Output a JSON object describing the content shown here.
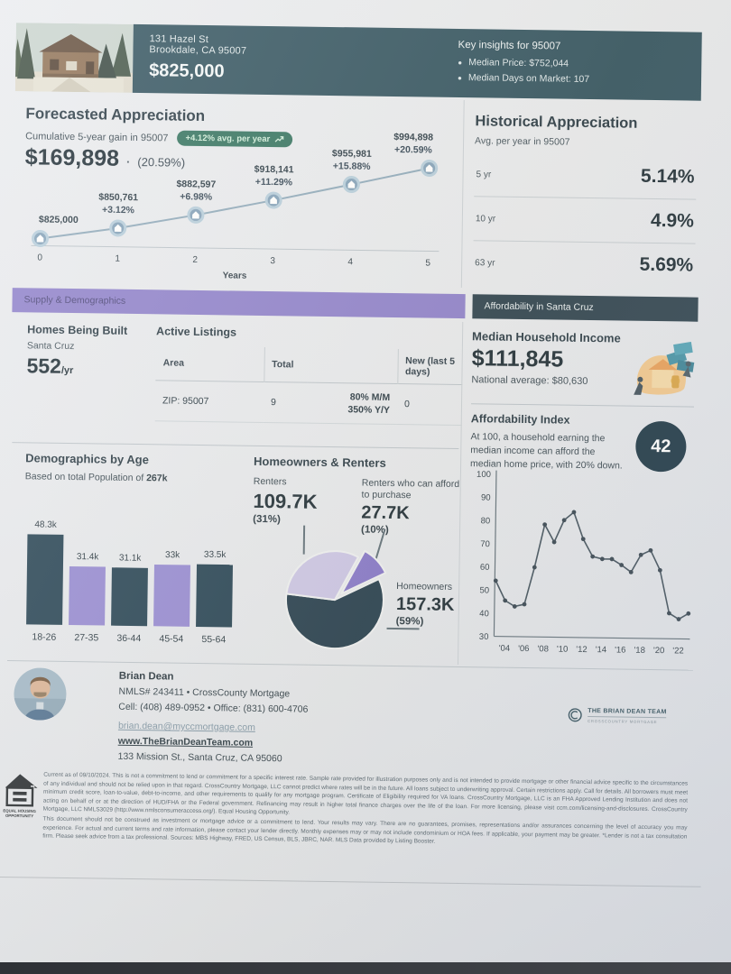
{
  "header": {
    "address_line1": "131 Hazel St",
    "address_line2": "Brookdale, CA 95007",
    "price": "$825,000",
    "insights_title": "Key insights for 95007",
    "insights": [
      "Median Price: $752,044",
      "Median Days on Market: 107"
    ]
  },
  "forecast": {
    "title": "Forecasted Appreciation",
    "subtitle": "Cumulative 5-year gain in 95007",
    "badge_label": "+4.12% avg. per year",
    "gain_amount": "$169,898",
    "gain_sep": "·",
    "gain_pct": "(20.59%)"
  },
  "historical": {
    "title": "Historical Appreciation",
    "subtitle": "Avg. per year in 95007",
    "rows": [
      {
        "label": "5 yr",
        "value": "5.14%"
      },
      {
        "label": "10 yr",
        "value": "4.9%"
      },
      {
        "label": "63 yr",
        "value": "5.69%"
      }
    ]
  },
  "section_bars": {
    "left": "Supply & Demographics",
    "right": "Affordability in Santa Cruz"
  },
  "supply": {
    "homes_title": "Homes Being Built",
    "homes_area": "Santa Cruz",
    "homes_value": "552",
    "homes_unit": "/yr",
    "listings_title": "Active Listings",
    "table": {
      "headers": [
        "Area",
        "Total",
        "New (last 5 days)"
      ],
      "row": {
        "area": "ZIP: 95007",
        "total": "9",
        "mm": "80% M/M",
        "yy": "350% Y/Y",
        "new": "0"
      }
    }
  },
  "income": {
    "title": "Median Household Income",
    "value": "$111,845",
    "national": "National average: $80,630"
  },
  "afford_index": {
    "title": "Affordability Index",
    "description": "At 100, a household earning the median income can afford the median home price, with 20% down.",
    "score": "42"
  },
  "contact": {
    "name": "Brian Dean",
    "line1": "NMLS# 243411 • CrossCounty Mortgage",
    "line2": "Cell: (408) 489-0952 • Office: (831) 600-4706",
    "email": "brian.dean@myccmortgage.com",
    "website": "www.TheBrianDeanTeam.com",
    "address": "133 Mission St., Santa Cruz, CA 95060",
    "brand_name": "THE BRIAN DEAN TEAM",
    "brand_sub": "CROSSCOUNTRY MORTGAGE"
  },
  "disclaimer": {
    "equal_housing_line1": "EQUAL HOUSING",
    "equal_housing_line2": "OPPORTUNITY",
    "p1": "Current as of 09/10/2024. This is not a commitment to lend or commitment for a specific interest rate. Sample rate provided for illustration purposes only and is not intended to provide mortgage or other financial advice specific to the circumstances of any individual and should not be relied upon in that regard. CrossCountry Mortgage, LLC cannot predict where rates will be in the future. All loans subject to underwriting approval. Certain restrictions apply. Call for details. All borrowers must meet minimum credit score, loan-to-value, debt-to-income, and other requirements to qualify for any mortgage program. Certificate of Eligibility required for VA loans. CrossCountry Mortgage, LLC is an FHA Approved Lending Institution and does not acting on behalf of or at the direction of HUD/FHA or the Federal government. Refinancing may result in higher total finance charges over the life of the loan. For more licensing, please visit ccm.com/licensing-and-disclosures. CrossCountry Mortgage, LLC NMLS3029 (http://www.nmlsconsumeraccess.org/). Equal Housing Opportunity.",
    "p2": "This document should not be construed as investment or mortgage advice or a commitment to lend. Your results may vary. There are no guarantees, promises, representations and/or assurances concerning the level of accuracy you may experience. For actual and current terms and rate information, please contact your lender directly. Monthly expenses may or may not include condominium or HOA fees. If applicable, your payment may be greater. *Lender is not a tax consultation firm. Please seek advice from a tax professional. Sources: MBS Highway, FRED, US Census, BLS, JBRC, NAR. MLS Data provided by Listing Booster."
  },
  "colors": {
    "header_navy": "#2b4d5a",
    "section_navy": "#263b48",
    "section_purple": "#8a7cc9",
    "badge_green": "#2d6e5a",
    "chart_line_blue": "#8ba6b8",
    "marker_blue": "#7e9db6"
  },
  "chart_data": [
    {
      "type": "line",
      "title": "Forecasted Appreciation",
      "x": [
        0,
        1,
        2,
        3,
        4,
        5
      ],
      "values": [
        825000,
        850761,
        882597,
        918141,
        955981,
        994898
      ],
      "price_labels": [
        "$825,000",
        "$850,761",
        "$882,597",
        "$918,141",
        "$955,981",
        "$994,898"
      ],
      "pct_labels": [
        "",
        "+3.12%",
        "+6.98%",
        "+11.29%",
        "+15.88%",
        "+20.59%"
      ],
      "xlabel": "Years",
      "ylim": [
        825000,
        994898
      ],
      "grid": false,
      "legend": "none"
    },
    {
      "type": "bar",
      "title": "Demographics by Age",
      "subtitle_prefix": "Based on total Population of",
      "total_population": "267k",
      "categories": [
        "18-26",
        "27-35",
        "36-44",
        "45-54",
        "55-64"
      ],
      "values": [
        48.3,
        31.4,
        31.1,
        33,
        33.5
      ],
      "value_labels": [
        "48.3k",
        "31.4k",
        "31.1k",
        "33k",
        "33.5k"
      ],
      "bar_colors": [
        "#1e3c4e",
        "#9185d0",
        "#1e3c4e",
        "#9185d0",
        "#1e3c4e"
      ],
      "unit": "thousands of people"
    },
    {
      "type": "pie",
      "title": "Homeowners & Renters",
      "start_angle": -62,
      "slices": [
        {
          "name": "Renters who can afford to purchase",
          "value": 10,
          "amount": "27.7K",
          "pct_label": "(10%)",
          "color": "#8172c6",
          "exploded": true
        },
        {
          "name": "Homeowners",
          "value": 59,
          "amount": "157.3K",
          "pct_label": "(59%)",
          "color": "#1e3748",
          "exploded": false
        },
        {
          "name": "Renters",
          "value": 31,
          "amount": "109.7K",
          "pct_label": "(31%)",
          "color": "#c9c3e4",
          "exploded": false
        }
      ]
    },
    {
      "type": "line",
      "title": "Affordability Index",
      "x_years": [
        2003,
        2004,
        2005,
        2006,
        2007,
        2008,
        2009,
        2010,
        2011,
        2012,
        2013,
        2014,
        2015,
        2016,
        2017,
        2018,
        2019,
        2020,
        2021,
        2022,
        2023
      ],
      "values": [
        54,
        45.5,
        43,
        44,
        60,
        78.5,
        71,
        80.5,
        84,
        72.5,
        65,
        64,
        64,
        61.5,
        58.5,
        66,
        68,
        59.5,
        41,
        38.5,
        41
      ],
      "ylim": [
        30,
        100
      ],
      "yticks": [
        30,
        40,
        50,
        60,
        70,
        80,
        90,
        100
      ],
      "xtick_years": [
        2004,
        2006,
        2008,
        2010,
        2012,
        2014,
        2016,
        2018,
        2020,
        2022
      ],
      "xtick_labels": [
        "'04",
        "'06",
        "'08",
        "'10",
        "'12",
        "'14",
        "'16",
        "'18",
        "'20",
        "'22"
      ],
      "grid": false,
      "legend": "none"
    }
  ]
}
